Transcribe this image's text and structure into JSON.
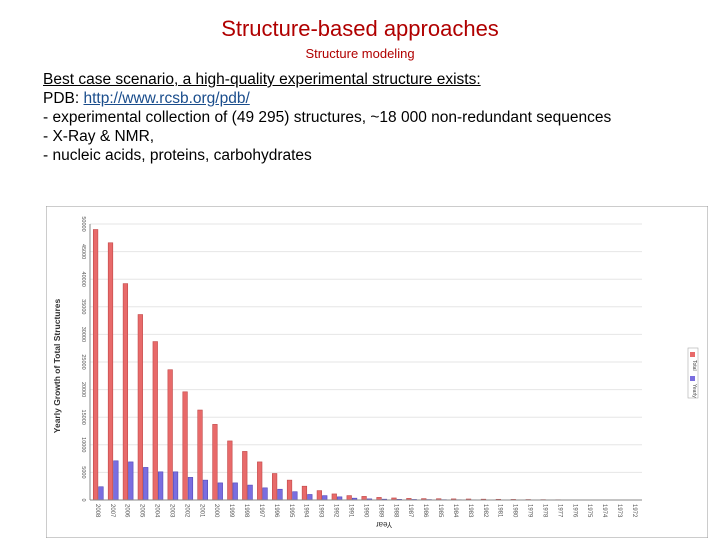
{
  "slide": {
    "title": "Structure-based approaches",
    "subtitle": "Structure modeling",
    "lines": [
      "Best case scenario, a high-quality experimental structure exists:",
      "- experimental collection of (49 295) structures, ~18 000 non-redundant sequences",
      "- X-Ray & NMR,",
      "- nucleic acids, proteins, carbohydrates"
    ],
    "pdb_label": "PDB: ",
    "pdb_link": "http://www.rcsb.org/pdb/"
  },
  "colors": {
    "title": "#b00000",
    "total_series": "#e86a6a",
    "yearly_series": "#7a6ee0",
    "link": "#1a4d8c"
  },
  "chart_data": {
    "type": "bar",
    "title": "",
    "ylabel": "Yearly Growth of Total Structures",
    "xlabel": "Year",
    "legend_position": "right",
    "grid": true,
    "categories": [
      "2008",
      "2007",
      "2006",
      "2005",
      "2004",
      "2003",
      "2002",
      "2001",
      "2000",
      "1999",
      "1998",
      "1997",
      "1996",
      "1995",
      "1994",
      "1993",
      "1992",
      "1991",
      "1990",
      "1989",
      "1988",
      "1987",
      "1986",
      "1985",
      "1984",
      "1983",
      "1982",
      "1981",
      "1980",
      "1979",
      "1978",
      "1977",
      "1976",
      "1975",
      "1974",
      "1973",
      "1972"
    ],
    "ylim": [
      0,
      50000
    ],
    "y_ticks": [
      "0",
      "5000",
      "10000",
      "15000",
      "20000",
      "25000",
      "30000",
      "35000",
      "40000",
      "45000",
      "50000"
    ],
    "series": [
      {
        "name": "Total",
        "values": [
          49000,
          46600,
          39200,
          33600,
          28700,
          23600,
          19600,
          16300,
          13700,
          10700,
          8800,
          6900,
          4800,
          3600,
          2500,
          1700,
          1100,
          800,
          650,
          470,
          370,
          290,
          250,
          230,
          200,
          180,
          150,
          130,
          110,
          90,
          70,
          50,
          30,
          20,
          10,
          0,
          0
        ]
      },
      {
        "name": "Yearly",
        "values": [
          2400,
          7100,
          6900,
          5900,
          5100,
          5100,
          4100,
          3600,
          3100,
          3100,
          2700,
          2200,
          1950,
          1500,
          1000,
          790,
          570,
          330,
          200,
          150,
          120,
          100,
          80,
          60,
          50,
          40,
          30,
          30,
          20,
          20,
          20,
          10,
          10,
          10,
          0,
          0,
          0
        ]
      }
    ]
  }
}
